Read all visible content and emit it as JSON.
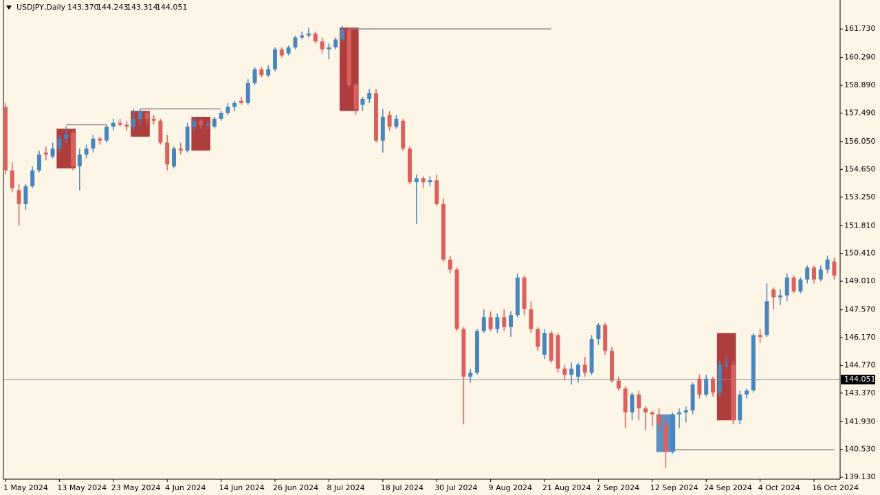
{
  "chart_data": {
    "type": "candlestick",
    "symbol": "USDJPY,Daily",
    "quote": [
      "143.370",
      "144.243",
      "143.314",
      "144.051"
    ],
    "bull_color": "#4a86be",
    "bear_color": "#d9625e",
    "background": "#fdf5e6",
    "open": [
      157.8,
      154.6,
      153.6,
      152.9,
      153.8,
      154.6,
      155.5,
      155.3,
      155.7,
      156.2,
      156.5,
      154.8,
      155.4,
      155.7,
      156.2,
      156.1,
      156.8,
      157.0,
      156.9,
      156.8,
      157.2,
      157.5,
      157.2,
      157.1,
      156.0,
      154.8,
      155.7,
      155.6,
      156.8,
      157.1,
      156.9,
      156.8,
      157.2,
      157.5,
      157.8,
      158.1,
      158.0,
      159.0,
      159.7,
      159.4,
      159.7,
      160.7,
      160.5,
      160.8,
      161.3,
      161.4,
      161.5,
      161.1,
      160.7,
      160.8,
      161.2,
      161.7,
      158.9,
      157.9,
      158.2,
      158.5,
      156.1,
      157.4,
      156.8,
      157.1,
      155.7,
      154.0,
      154.2,
      154.0,
      154.1,
      152.9,
      150.1,
      149.6,
      146.6,
      144.2,
      144.4,
      146.5,
      147.2,
      146.6,
      147.2,
      146.7,
      147.3,
      149.2,
      147.6,
      146.6,
      145.3,
      146.4,
      146.3,
      144.6,
      144.3,
      144.2,
      144.8,
      144.4,
      146.1,
      146.8,
      145.5,
      144.0,
      143.6,
      142.4,
      143.3,
      142.6,
      142.4,
      142.3,
      141.8,
      140.4,
      142.3,
      142.4,
      142.5,
      144.1,
      143.3,
      144.1,
      143.4,
      144.8,
      144.8,
      142.0,
      143.3,
      143.5,
      146.3,
      146.3,
      148.6,
      148.2,
      148.3,
      149.2,
      148.5,
      149.1,
      149.7,
      149.1,
      149.6,
      150.0
    ],
    "high": [
      158.0,
      155.0,
      153.9,
      153.9,
      154.8,
      155.6,
      155.8,
      156.0,
      156.4,
      156.8,
      156.6,
      155.7,
      155.9,
      156.4,
      156.3,
      156.9,
      157.2,
      157.2,
      157.1,
      157.7,
      157.7,
      157.6,
      157.4,
      157.2,
      156.4,
      155.8,
      156.0,
      157.0,
      157.3,
      157.2,
      157.1,
      157.3,
      157.6,
      158.0,
      158.1,
      158.3,
      159.2,
      159.8,
      159.8,
      159.9,
      160.8,
      160.8,
      160.9,
      161.4,
      161.6,
      161.8,
      161.6,
      161.3,
      161.0,
      161.3,
      161.9,
      161.8,
      159.0,
      158.3,
      158.7,
      158.7,
      157.7,
      157.6,
      157.4,
      157.2,
      155.8,
      154.4,
      154.3,
      154.3,
      154.4,
      153.2,
      150.3,
      149.7,
      146.7,
      144.6,
      146.6,
      147.6,
      147.5,
      147.4,
      147.6,
      147.5,
      149.4,
      149.3,
      148.0,
      146.7,
      146.6,
      146.5,
      146.4,
      144.8,
      144.9,
      144.9,
      145.2,
      146.3,
      146.9,
      146.9,
      145.7,
      144.2,
      143.7,
      143.4,
      143.5,
      142.7,
      142.5,
      142.6,
      142.1,
      142.4,
      142.6,
      142.7,
      143.9,
      144.3,
      144.3,
      144.2,
      145.0,
      145.3,
      145.0,
      143.5,
      143.6,
      146.4,
      146.6,
      148.9,
      148.7,
      148.6,
      149.4,
      149.3,
      149.2,
      149.8,
      149.8,
      149.8,
      150.3,
      150.2
    ],
    "low": [
      154.4,
      153.5,
      151.8,
      152.6,
      153.7,
      154.5,
      155.1,
      155.2,
      155.5,
      156.0,
      154.6,
      153.6,
      155.2,
      155.5,
      155.9,
      156.0,
      156.6,
      156.8,
      156.6,
      156.6,
      156.9,
      156.9,
      156.9,
      155.9,
      154.6,
      154.7,
      155.4,
      155.5,
      156.6,
      156.7,
      156.8,
      156.7,
      157.1,
      157.4,
      157.6,
      157.9,
      157.9,
      158.9,
      159.3,
      159.3,
      159.6,
      160.3,
      160.4,
      160.7,
      161.2,
      161.3,
      161.0,
      160.5,
      160.2,
      160.7,
      161.1,
      158.8,
      157.4,
      157.6,
      158.0,
      156.0,
      155.5,
      156.6,
      156.7,
      155.6,
      153.9,
      151.9,
      153.7,
      153.8,
      152.8,
      150.0,
      149.4,
      146.5,
      141.8,
      143.9,
      144.3,
      146.4,
      146.5,
      146.4,
      146.5,
      146.2,
      147.2,
      147.3,
      146.4,
      145.5,
      145.1,
      144.9,
      144.4,
      144.0,
      143.8,
      143.9,
      144.2,
      144.3,
      145.8,
      145.3,
      143.9,
      143.5,
      141.6,
      142.0,
      142.0,
      141.5,
      141.7,
      141.4,
      139.6,
      140.3,
      141.6,
      141.9,
      142.3,
      143.1,
      143.2,
      143.2,
      143.2,
      144.6,
      141.8,
      141.8,
      143.1,
      143.4,
      145.9,
      146.2,
      147.6,
      147.8,
      148.0,
      148.4,
      148.4,
      148.9,
      148.9,
      149.0,
      149.4,
      149.1
    ],
    "close": [
      154.6,
      153.7,
      152.9,
      153.8,
      154.6,
      155.4,
      155.4,
      155.7,
      156.2,
      156.4,
      154.8,
      155.4,
      155.7,
      156.2,
      156.1,
      156.8,
      157.0,
      156.9,
      156.8,
      157.2,
      157.6,
      157.2,
      157.1,
      156.0,
      154.9,
      155.7,
      155.6,
      156.8,
      157.1,
      156.9,
      156.9,
      157.2,
      157.5,
      157.8,
      158.0,
      158.0,
      159.0,
      159.7,
      159.4,
      159.7,
      160.7,
      160.4,
      160.8,
      161.3,
      161.4,
      161.5,
      161.1,
      160.7,
      160.8,
      161.2,
      161.7,
      158.9,
      157.7,
      158.2,
      158.5,
      156.1,
      157.3,
      156.8,
      157.2,
      155.7,
      154.0,
      154.2,
      154.0,
      154.1,
      152.9,
      150.1,
      149.6,
      146.6,
      144.2,
      144.4,
      146.5,
      147.2,
      146.6,
      147.2,
      146.7,
      147.3,
      149.2,
      147.6,
      146.6,
      145.7,
      146.4,
      145.0,
      144.6,
      144.3,
      144.6,
      144.8,
      144.4,
      146.1,
      146.8,
      145.5,
      144.0,
      143.6,
      142.4,
      143.3,
      142.6,
      142.4,
      142.3,
      141.8,
      140.4,
      142.3,
      142.4,
      142.5,
      143.8,
      143.3,
      144.1,
      143.4,
      144.8,
      144.8,
      142.0,
      143.3,
      143.5,
      146.3,
      146.2,
      148.0,
      148.2,
      148.3,
      149.2,
      148.5,
      149.1,
      149.7,
      149.1,
      149.6,
      150.1,
      149.3
    ],
    "zones": [
      {
        "start": 8,
        "end": 10,
        "top": 156.7,
        "bottom": 154.7,
        "color": "#a52a2a"
      },
      {
        "start": 19,
        "end": 21,
        "top": 157.6,
        "bottom": 156.3,
        "color": "#a52a2a"
      },
      {
        "start": 28,
        "end": 30,
        "top": 157.3,
        "bottom": 155.6,
        "color": "#a52a2a"
      },
      {
        "start": 50,
        "end": 52,
        "top": 161.8,
        "bottom": 157.6,
        "color": "#a52a2a"
      },
      {
        "start": 97,
        "end": 99,
        "top": 142.3,
        "bottom": 140.4,
        "color": "#4a86be"
      },
      {
        "start": 106,
        "end": 108,
        "top": 146.4,
        "bottom": 142.0,
        "color": "#a52a2a"
      }
    ],
    "levels": [
      {
        "start": 9,
        "end": 15,
        "value": 156.9
      },
      {
        "start": 20,
        "end": 32,
        "value": 157.7
      },
      {
        "start": 51,
        "end": 81,
        "value": 161.73
      },
      {
        "start": 98,
        "end": 123,
        "value": 140.51
      }
    ],
    "last_price": 144.051,
    "ylim": [
      139.03,
      163.19
    ],
    "yticks": [
      {
        "value": 161.73,
        "label": "161.730"
      },
      {
        "value": 160.29,
        "label": "160.290"
      },
      {
        "value": 158.89,
        "label": "158.890"
      },
      {
        "value": 157.49,
        "label": "157.490"
      },
      {
        "value": 156.05,
        "label": "156.050"
      },
      {
        "value": 154.65,
        "label": "154.650"
      },
      {
        "value": 153.25,
        "label": "153.250"
      },
      {
        "value": 151.81,
        "label": "151.810"
      },
      {
        "value": 150.41,
        "label": "150.410"
      },
      {
        "value": 149.01,
        "label": "149.010"
      },
      {
        "value": 147.57,
        "label": "147.570"
      },
      {
        "value": 146.17,
        "label": "146.170"
      },
      {
        "value": 144.77,
        "label": "144.770"
      },
      {
        "value": 143.37,
        "label": "143.370"
      },
      {
        "value": 141.93,
        "label": "141.930"
      },
      {
        "value": 140.53,
        "label": "140.530"
      },
      {
        "value": 139.13,
        "label": "139.130"
      }
    ],
    "xticks": [
      {
        "value": 0,
        "label": "1 May 2024"
      },
      {
        "value": 8,
        "label": "13 May 2024"
      },
      {
        "value": 16,
        "label": "23 May 2024"
      },
      {
        "value": 24,
        "label": "4 Jun 2024"
      },
      {
        "value": 32,
        "label": "14 Jun 2024"
      },
      {
        "value": 40,
        "label": "26 Jun 2024"
      },
      {
        "value": 48,
        "label": "8 Jul 2024"
      },
      {
        "value": 56,
        "label": "18 Jul 2024"
      },
      {
        "value": 64,
        "label": "30 Jul 2024"
      },
      {
        "value": 72,
        "label": "9 Aug 2024"
      },
      {
        "value": 80,
        "label": "21 Aug 2024"
      },
      {
        "value": 88,
        "label": "2 Sep 2024"
      },
      {
        "value": 96,
        "label": "12 Sep 2024"
      },
      {
        "value": 104,
        "label": "24 Sep 2024"
      },
      {
        "value": 112,
        "label": "4 Oct 2024"
      },
      {
        "value": 120,
        "label": "16 Oct 2024"
      }
    ]
  }
}
